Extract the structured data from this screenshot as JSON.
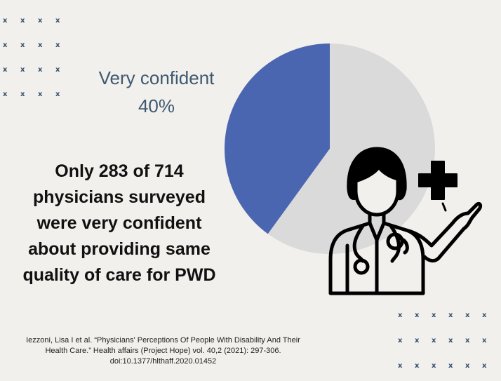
{
  "chart_data": {
    "type": "pie",
    "slices": [
      {
        "label": "Very confident",
        "value": 40,
        "color": "#4b66b0"
      },
      {
        "label": "",
        "value": 60,
        "color": "#dadada"
      }
    ],
    "annotation": {
      "label": "Very confident",
      "value_text": "40%"
    }
  },
  "headline": "Only 283 of 714 physicians surveyed were very confident about providing same quality of care for PWD",
  "citation": "Iezzoni, Lisa I et al. “Physicians' Perceptions Of People With Disability And Their Health Care.” Health affairs (Project Hope) vol. 40,2 (2021): 297-306. doi:10.1377/hlthaff.2020.01452",
  "decorations": {
    "x_mark": "x",
    "accent_color": "#35506e",
    "icon": "doctor-icon",
    "cross_icon": "medical-cross-icon"
  }
}
